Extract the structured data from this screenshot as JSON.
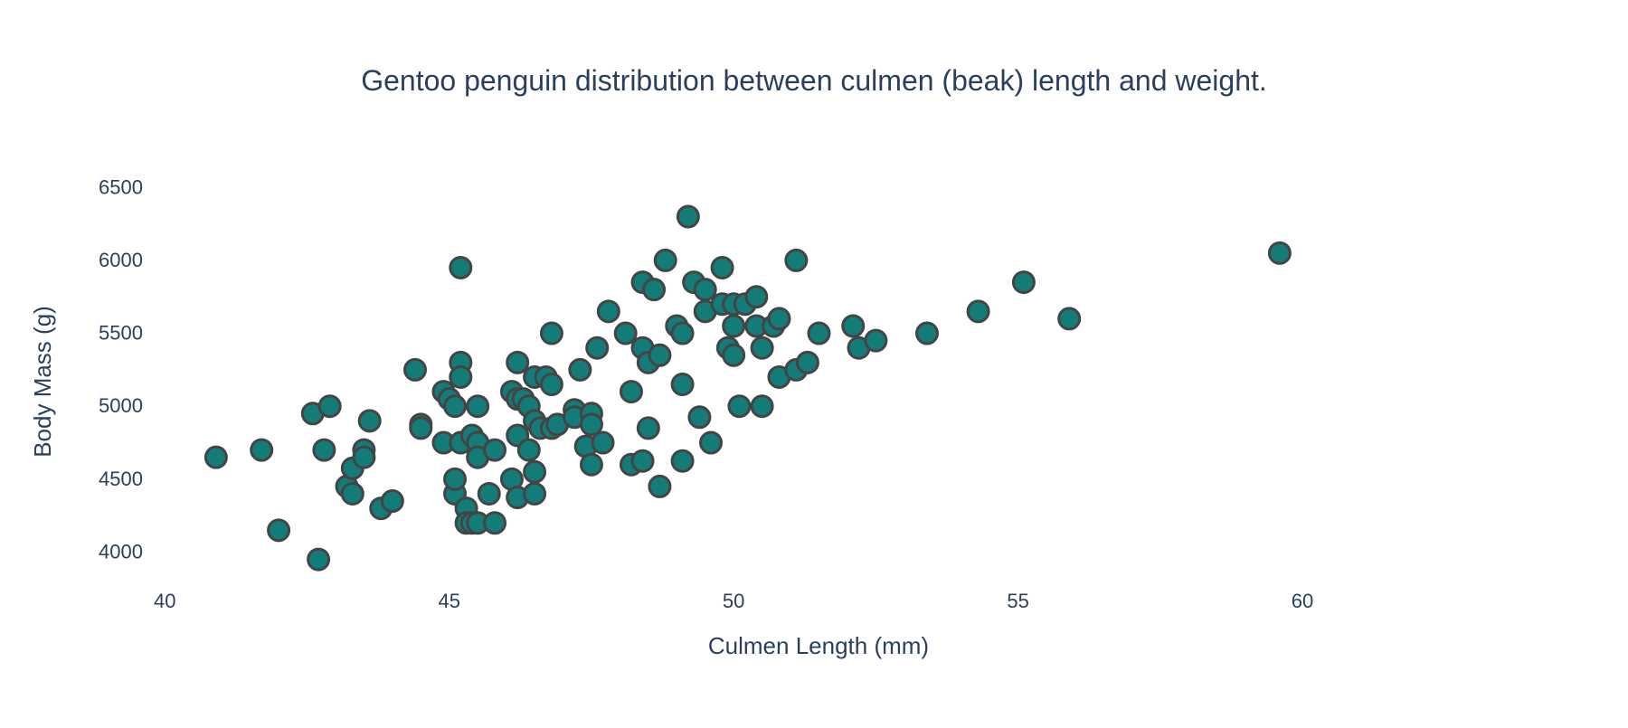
{
  "chart_data": {
    "type": "scatter",
    "title": "Gentoo penguin distribution between culmen (beak) length and weight.",
    "xlabel": "Culmen Length (mm)",
    "ylabel": "Body Mass (g)",
    "xlim": [
      39.9,
      63.1
    ],
    "ylim": [
      3780,
      6700
    ],
    "xticks": [
      40,
      45,
      50,
      55,
      60
    ],
    "yticks": [
      4000,
      4500,
      5000,
      5500,
      6000,
      6500
    ],
    "grid": false,
    "legend": "none",
    "marker_color": "#137c78",
    "marker_edge_color": "#444444",
    "series": [
      {
        "x": [
          40.9,
          41.7,
          42.0,
          42.6,
          42.7,
          42.8,
          42.9,
          43.2,
          43.3,
          43.3,
          43.5,
          43.5,
          43.6,
          43.8,
          44.0,
          44.4,
          44.5,
          44.5,
          44.9,
          44.9,
          45.0,
          45.1,
          45.1,
          45.1,
          45.2,
          45.2,
          45.2,
          45.2,
          45.3,
          45.3,
          45.4,
          45.4,
          45.5,
          45.5,
          45.5,
          45.5,
          45.7,
          45.8,
          45.8,
          46.1,
          46.1,
          46.2,
          46.2,
          46.2,
          46.2,
          46.3,
          46.4,
          46.4,
          46.5,
          46.5,
          46.5,
          46.5,
          46.6,
          46.7,
          46.8,
          46.8,
          46.8,
          46.9,
          47.2,
          47.2,
          47.3,
          47.4,
          47.5,
          47.5,
          47.5,
          47.6,
          47.7,
          47.8,
          48.1,
          48.2,
          48.2,
          48.4,
          48.4,
          48.4,
          48.5,
          48.5,
          48.6,
          48.7,
          48.7,
          48.8,
          49.0,
          49.1,
          49.1,
          49.1,
          49.2,
          49.3,
          49.4,
          49.5,
          49.5,
          49.6,
          49.8,
          49.8,
          49.9,
          50.0,
          50.0,
          50.0,
          50.1,
          50.2,
          50.4,
          50.4,
          50.5,
          50.5,
          50.7,
          50.8,
          50.8,
          51.1,
          51.1,
          51.3,
          51.5,
          52.1,
          52.2,
          52.5,
          53.4,
          54.3,
          55.1,
          55.9,
          59.6
        ],
        "y": [
          4650,
          4700,
          4150,
          4950,
          3950,
          4700,
          5000,
          4450,
          4575,
          4400,
          4700,
          4650,
          4900,
          4300,
          4350,
          5250,
          4875,
          4850,
          5100,
          4750,
          5050,
          5000,
          4400,
          4500,
          5950,
          5300,
          5200,
          4750,
          4300,
          4200,
          4800,
          4200,
          5000,
          4750,
          4650,
          4200,
          4400,
          4700,
          4200,
          5100,
          4500,
          5300,
          4800,
          4375,
          5050,
          5050,
          5000,
          4700,
          5200,
          4900,
          4550,
          4400,
          4850,
          5200,
          5500,
          5150,
          4850,
          4875,
          4975,
          4925,
          5250,
          4725,
          4950,
          4875,
          4600,
          5400,
          4750,
          5650,
          5500,
          5100,
          4600,
          5850,
          5400,
          4625,
          5300,
          4850,
          5800,
          5350,
          4450,
          6000,
          5550,
          5500,
          5150,
          4625,
          6300,
          5850,
          4925,
          5800,
          5650,
          4750,
          5950,
          5700,
          5400,
          5550,
          5350,
          5700,
          5000,
          5700,
          5750,
          5550,
          5400,
          5000,
          5550,
          5600,
          5200,
          5250,
          6000,
          5300,
          5500,
          5550,
          5400,
          5450,
          5500,
          5650,
          5850,
          5600,
          6050
        ]
      }
    ]
  }
}
